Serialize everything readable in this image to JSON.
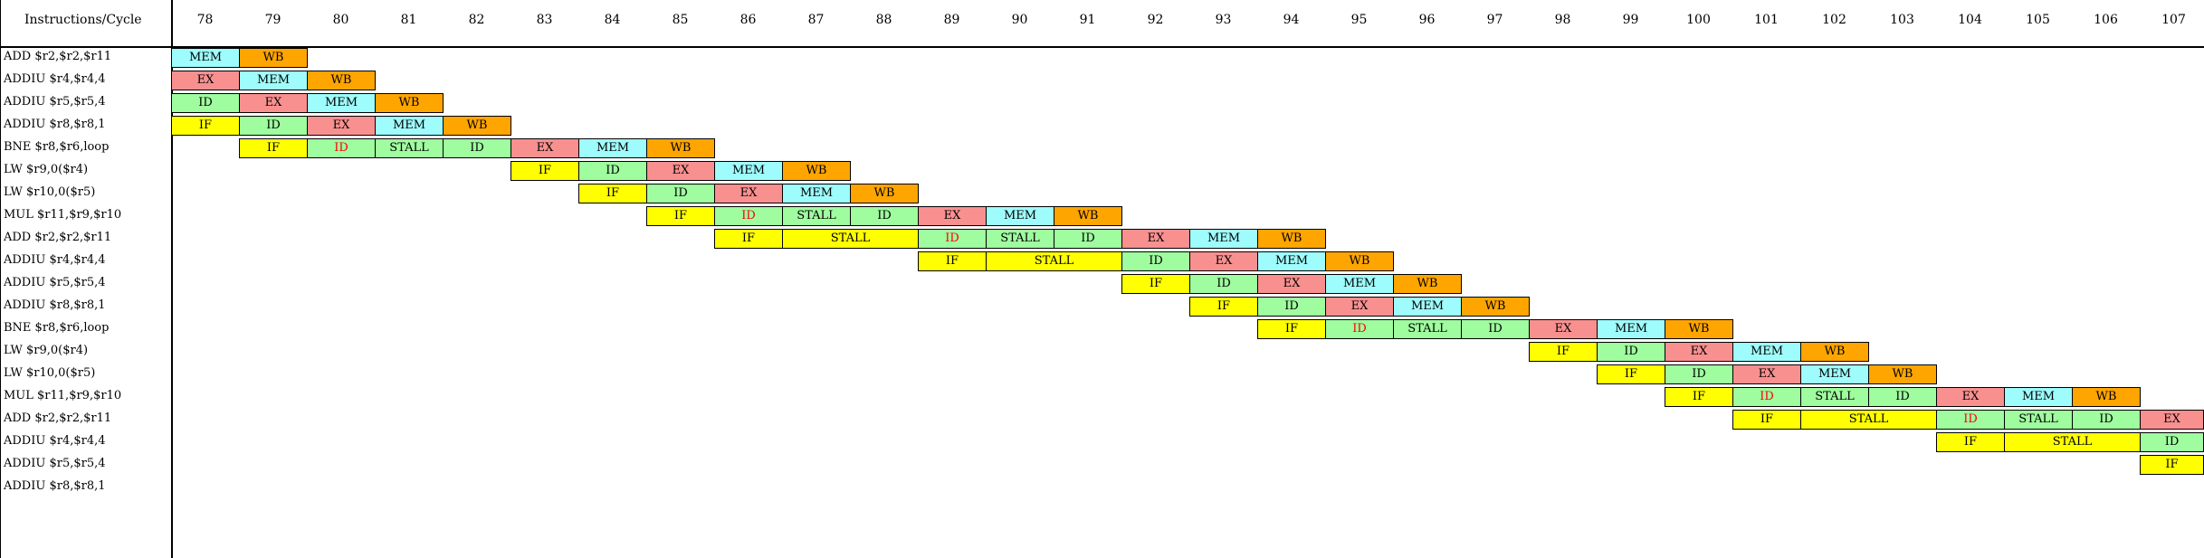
{
  "header": {
    "title": "Instructions/Cycle"
  },
  "cycles": [
    "78",
    "79",
    "80",
    "81",
    "82",
    "83",
    "84",
    "85",
    "86",
    "87",
    "88",
    "89",
    "90",
    "91",
    "92",
    "93",
    "94",
    "95",
    "96",
    "97",
    "98",
    "99",
    "100",
    "101",
    "102",
    "103",
    "104",
    "105",
    "106",
    "107"
  ],
  "instructions": [
    "ADD $r2,$r2,$r11",
    "ADDIU $r4,$r4,4",
    "ADDIU $r5,$r5,4",
    "ADDIU $r8,$r8,1",
    "BNE $r8,$r6,loop",
    "LW $r9,0($r4)",
    "LW $r10,0($r5)",
    "MUL $r11,$r9,$r10",
    "ADD $r2,$r2,$r11",
    "ADDIU $r4,$r4,4",
    "ADDIU $r5,$r5,4",
    "ADDIU $r8,$r8,1",
    "BNE $r8,$r6,loop",
    "LW $r9,0($r4)",
    "LW $r10,0($r5)",
    "MUL $r11,$r9,$r10",
    "ADD $r2,$r2,$r11",
    "ADDIU $r4,$r4,4",
    "ADDIU $r5,$r5,4",
    "ADDIU $r8,$r8,1"
  ],
  "pipeline_rows": [
    [
      {
        "c": 0,
        "s": "MEM"
      },
      {
        "c": 1,
        "s": "WB"
      }
    ],
    [
      {
        "c": 0,
        "s": "EX"
      },
      {
        "c": 1,
        "s": "MEM"
      },
      {
        "c": 2,
        "s": "WB"
      }
    ],
    [
      {
        "c": 0,
        "s": "ID"
      },
      {
        "c": 1,
        "s": "EX"
      },
      {
        "c": 2,
        "s": "MEM"
      },
      {
        "c": 3,
        "s": "WB"
      }
    ],
    [
      {
        "c": 0,
        "s": "IF"
      },
      {
        "c": 1,
        "s": "ID"
      },
      {
        "c": 2,
        "s": "EX"
      },
      {
        "c": 3,
        "s": "MEM"
      },
      {
        "c": 4,
        "s": "WB"
      }
    ],
    [
      {
        "c": 1,
        "s": "IF"
      },
      {
        "c": 2,
        "s": "ID",
        "red": true
      },
      {
        "c": 3,
        "s": "STALL",
        "bg": "ID"
      },
      {
        "c": 4,
        "s": "ID"
      },
      {
        "c": 5,
        "s": "EX"
      },
      {
        "c": 6,
        "s": "MEM"
      },
      {
        "c": 7,
        "s": "WB"
      }
    ],
    [
      {
        "c": 5,
        "s": "IF"
      },
      {
        "c": 6,
        "s": "ID"
      },
      {
        "c": 7,
        "s": "EX"
      },
      {
        "c": 8,
        "s": "MEM"
      },
      {
        "c": 9,
        "s": "WB"
      }
    ],
    [
      {
        "c": 6,
        "s": "IF"
      },
      {
        "c": 7,
        "s": "ID"
      },
      {
        "c": 8,
        "s": "EX"
      },
      {
        "c": 9,
        "s": "MEM"
      },
      {
        "c": 10,
        "s": "WB"
      }
    ],
    [
      {
        "c": 7,
        "s": "IF"
      },
      {
        "c": 8,
        "s": "ID",
        "red": true
      },
      {
        "c": 9,
        "s": "STALL",
        "bg": "ID"
      },
      {
        "c": 10,
        "s": "ID"
      },
      {
        "c": 11,
        "s": "EX"
      },
      {
        "c": 12,
        "s": "MEM"
      },
      {
        "c": 13,
        "s": "WB"
      }
    ],
    [
      {
        "c": 8,
        "s": "IF"
      },
      {
        "c": 9,
        "s": "STALL",
        "span": 2
      },
      {
        "c": 11,
        "s": "ID",
        "red": true
      },
      {
        "c": 12,
        "s": "STALL",
        "bg": "ID"
      },
      {
        "c": 13,
        "s": "ID"
      },
      {
        "c": 14,
        "s": "EX"
      },
      {
        "c": 15,
        "s": "MEM"
      },
      {
        "c": 16,
        "s": "WB"
      }
    ],
    [
      {
        "c": 11,
        "s": "IF"
      },
      {
        "c": 12,
        "s": "STALL",
        "span": 2
      },
      {
        "c": 14,
        "s": "ID"
      },
      {
        "c": 15,
        "s": "EX"
      },
      {
        "c": 16,
        "s": "MEM"
      },
      {
        "c": 17,
        "s": "WB"
      }
    ],
    [
      {
        "c": 14,
        "s": "IF"
      },
      {
        "c": 15,
        "s": "ID"
      },
      {
        "c": 16,
        "s": "EX"
      },
      {
        "c": 17,
        "s": "MEM"
      },
      {
        "c": 18,
        "s": "WB"
      }
    ],
    [
      {
        "c": 15,
        "s": "IF"
      },
      {
        "c": 16,
        "s": "ID"
      },
      {
        "c": 17,
        "s": "EX"
      },
      {
        "c": 18,
        "s": "MEM"
      },
      {
        "c": 19,
        "s": "WB"
      }
    ],
    [
      {
        "c": 16,
        "s": "IF"
      },
      {
        "c": 17,
        "s": "ID",
        "red": true
      },
      {
        "c": 18,
        "s": "STALL",
        "bg": "ID"
      },
      {
        "c": 19,
        "s": "ID"
      },
      {
        "c": 20,
        "s": "EX"
      },
      {
        "c": 21,
        "s": "MEM"
      },
      {
        "c": 22,
        "s": "WB"
      }
    ],
    [
      {
        "c": 20,
        "s": "IF"
      },
      {
        "c": 21,
        "s": "ID"
      },
      {
        "c": 22,
        "s": "EX"
      },
      {
        "c": 23,
        "s": "MEM"
      },
      {
        "c": 24,
        "s": "WB"
      }
    ],
    [
      {
        "c": 21,
        "s": "IF"
      },
      {
        "c": 22,
        "s": "ID"
      },
      {
        "c": 23,
        "s": "EX"
      },
      {
        "c": 24,
        "s": "MEM"
      },
      {
        "c": 25,
        "s": "WB"
      }
    ],
    [
      {
        "c": 22,
        "s": "IF"
      },
      {
        "c": 23,
        "s": "ID",
        "red": true
      },
      {
        "c": 24,
        "s": "STALL",
        "bg": "ID"
      },
      {
        "c": 25,
        "s": "ID"
      },
      {
        "c": 26,
        "s": "EX"
      },
      {
        "c": 27,
        "s": "MEM"
      },
      {
        "c": 28,
        "s": "WB"
      }
    ],
    [
      {
        "c": 23,
        "s": "IF"
      },
      {
        "c": 24,
        "s": "STALL",
        "span": 2
      },
      {
        "c": 26,
        "s": "ID",
        "red": true
      },
      {
        "c": 27,
        "s": "STALL",
        "bg": "ID"
      },
      {
        "c": 28,
        "s": "ID"
      },
      {
        "c": 29,
        "s": "EX"
      }
    ],
    [
      {
        "c": 26,
        "s": "IF"
      },
      {
        "c": 27,
        "s": "STALL",
        "span": 2
      },
      {
        "c": 29,
        "s": "ID"
      }
    ],
    [
      {
        "c": 29,
        "s": "IF"
      }
    ],
    []
  ],
  "colors": {
    "IF": "#ffff00",
    "ID": "#9ffc9f",
    "EX": "#f99090",
    "MEM": "#9ffcfc",
    "WB": "#ffa500",
    "red_text": "#ff0000"
  }
}
